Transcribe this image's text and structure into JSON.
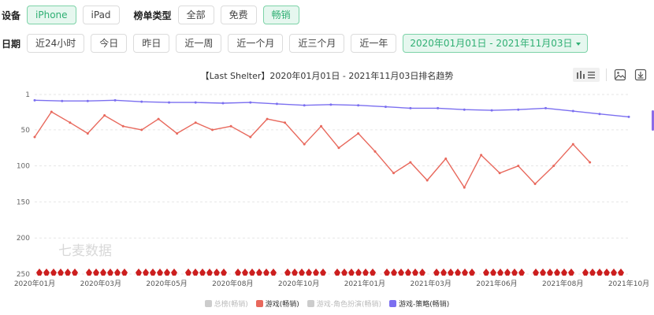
{
  "filters": {
    "device_label": "设备",
    "devices": [
      {
        "label": "iPhone",
        "active": true
      },
      {
        "label": "iPad",
        "active": false
      }
    ],
    "list_type_label": "榜单类型",
    "list_types": [
      {
        "label": "全部",
        "active": false
      },
      {
        "label": "免费",
        "active": false
      },
      {
        "label": "畅销",
        "active": true
      }
    ],
    "date_label": "日期",
    "date_buttons": [
      "近24小时",
      "今日",
      "昨日",
      "近一周",
      "近一个月",
      "近三个月",
      "近一年"
    ],
    "date_range": "2020年01月01日 - 2021年11月03日"
  },
  "toolbar": {
    "icons": [
      "bar-list-icon",
      "image-icon",
      "download-icon"
    ]
  },
  "watermark": "七麦数据",
  "colors": {
    "accent": "#2faf73",
    "games": "#e8685c",
    "strategy": "#7b6ff0",
    "inactive": "#cccccc",
    "marker": "#cc1f1f"
  },
  "chart_data": {
    "type": "line",
    "title": "【Last Shelter】2020年01月01日 - 2021年11月03日排名趋势",
    "y_reversed": true,
    "ylim": [
      1,
      250
    ],
    "y_ticks": [
      1,
      50,
      100,
      150,
      200,
      250
    ],
    "x_tick_labels": [
      "2020年01月",
      "2020年03月",
      "2020年05月",
      "2020年08月",
      "2020年10月",
      "2021年01月",
      "2021年03月",
      "2021年06月",
      "2021年08月",
      "2021年10月"
    ],
    "x_range": [
      "2020-01-01",
      "2021-11-03"
    ],
    "grid": true,
    "legend_position": "bottom",
    "series": [
      {
        "name": "总榜(畅销)",
        "active": false,
        "color": "#cccccc",
        "x": [],
        "values": []
      },
      {
        "name": "游戏(畅销)",
        "active": true,
        "color": "#e8685c",
        "x": [
          "2020-01-01",
          "2020-01-20",
          "2020-02-10",
          "2020-03-01",
          "2020-03-20",
          "2020-04-10",
          "2020-05-01",
          "2020-05-20",
          "2020-06-10",
          "2020-07-01",
          "2020-07-20",
          "2020-08-10",
          "2020-09-01",
          "2020-09-20",
          "2020-10-10",
          "2020-11-01",
          "2020-11-20",
          "2020-12-10",
          "2021-01-01",
          "2021-01-20",
          "2021-02-10",
          "2021-03-01",
          "2021-03-20",
          "2021-04-10",
          "2021-05-01",
          "2021-05-20",
          "2021-06-10",
          "2021-07-01",
          "2021-07-20",
          "2021-08-10",
          "2021-09-01",
          "2021-09-20"
        ],
        "values": [
          60,
          25,
          40,
          55,
          30,
          45,
          50,
          35,
          55,
          40,
          50,
          45,
          60,
          35,
          40,
          70,
          45,
          75,
          55,
          80,
          110,
          95,
          120,
          90,
          130,
          85,
          110,
          100,
          125,
          100,
          70,
          95
        ]
      },
      {
        "name": "游戏-角色扮演(畅销)",
        "active": false,
        "color": "#cccccc",
        "x": [],
        "values": []
      },
      {
        "name": "游戏-策略(畅销)",
        "active": true,
        "color": "#7b6ff0",
        "x": [
          "2020-01-01",
          "2020-02-01",
          "2020-03-01",
          "2020-04-01",
          "2020-05-01",
          "2020-06-01",
          "2020-07-01",
          "2020-08-01",
          "2020-09-01",
          "2020-10-01",
          "2020-11-01",
          "2020-12-01",
          "2021-01-01",
          "2021-02-01",
          "2021-03-01",
          "2021-04-01",
          "2021-05-01",
          "2021-06-01",
          "2021-07-01",
          "2021-08-01",
          "2021-09-01",
          "2021-10-01",
          "2021-11-03"
        ],
        "values": [
          9,
          10,
          10,
          9,
          11,
          12,
          12,
          13,
          12,
          14,
          16,
          15,
          16,
          18,
          20,
          20,
          22,
          23,
          22,
          20,
          24,
          28,
          32
        ]
      }
    ]
  },
  "legend": [
    {
      "label": "总榜(畅销)",
      "color": "#cccccc"
    },
    {
      "label": "游戏(畅销)",
      "color": "#e8685c"
    },
    {
      "label": "游戏-角色扮演(畅销)",
      "color": "#cccccc"
    },
    {
      "label": "游戏-策略(畅销)",
      "color": "#7b6ff0"
    }
  ]
}
